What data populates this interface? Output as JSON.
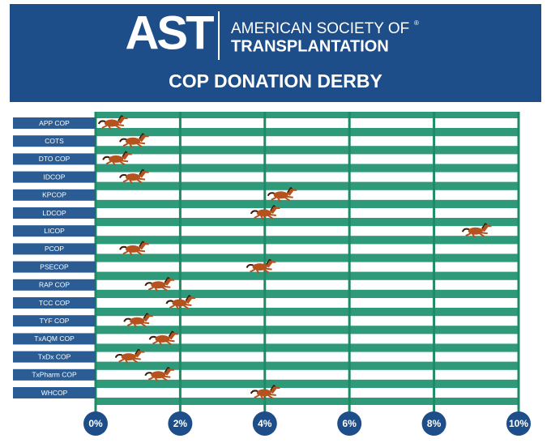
{
  "header": {
    "logo": "AST",
    "organization_line1": "AMERICAN SOCIETY OF",
    "organization_line2": "TRANSPLANTATION",
    "registered": "®"
  },
  "chart_data": {
    "type": "race",
    "title": "COP DONATION DERBY",
    "categories": [
      "APP COP",
      "COTS",
      "DTO COP",
      "IDCOP",
      "KPCOP",
      "LDCOP",
      "LICOP",
      "PCOP",
      "PSECOP",
      "RAP COP",
      "TCC COP",
      "TYF COP",
      "TxAQM COP",
      "TxDx COP",
      "TxPharm COP",
      "WHCOP"
    ],
    "values": [
      0.4,
      0.9,
      0.5,
      0.9,
      4.4,
      4.0,
      9.0,
      0.9,
      3.9,
      1.5,
      2.0,
      1.0,
      1.6,
      0.8,
      1.5,
      4.0
    ],
    "color": "#b5521e",
    "xlim": [
      0,
      10
    ],
    "xticks": [
      {
        "value": 0,
        "label": "0%"
      },
      {
        "value": 2,
        "label": "2%"
      },
      {
        "value": 4,
        "label": "4%"
      },
      {
        "value": 6,
        "label": "6%"
      },
      {
        "value": 8,
        "label": "8%"
      },
      {
        "value": 10,
        "label": "10%"
      }
    ],
    "grid": true
  }
}
